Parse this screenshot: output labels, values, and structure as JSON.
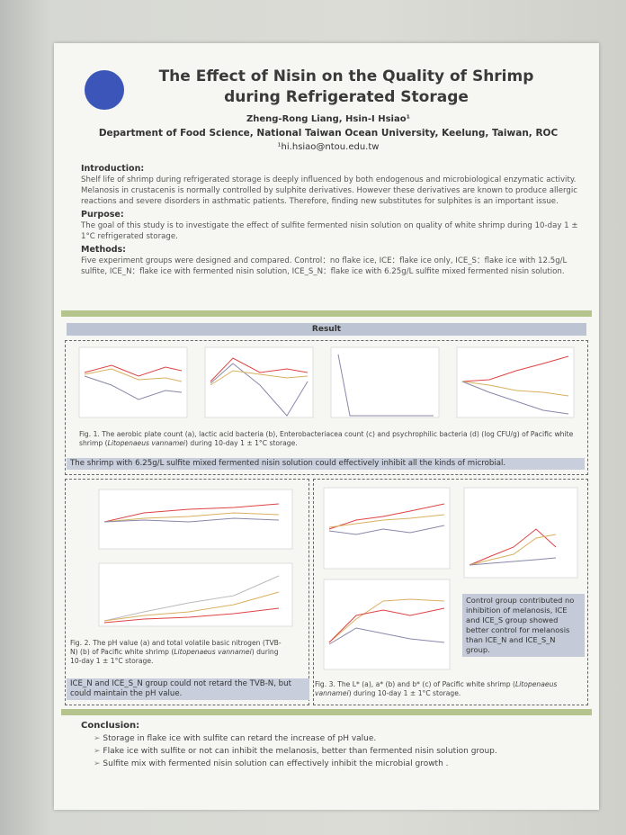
{
  "header": {
    "title": "The Effect of Nisin on the Quality of Shrimp during Refrigerated Storage",
    "authors": "Zheng-Rong Liang, Hsin-I Hsiao¹",
    "affiliation": "Department of Food Science, National Taiwan Ocean University, Keelung, Taiwan, ROC",
    "email": "¹hi.hsiao@ntou.edu.tw"
  },
  "introduction": {
    "heading": "Introduction:",
    "text": "Shelf life of shrimp during refrigerated storage is deeply influenced by both endogenous and microbiological enzymatic activity. Melanosis in crustacenis is normally controlled by sulphite derivatives. However these derivatives are known to produce allergic reactions and severe disorders in asthmatic patients. Therefore, finding new substitutes for sulphites is an important issue."
  },
  "purpose": {
    "heading": "Purpose:",
    "text": "The goal of this study is to investigate the effect of sulfite fermented nisin solution on quality of white shrimp during 10-day 1 ± 1°C refrigerated storage."
  },
  "methods": {
    "heading": "Methods:",
    "text": "Five experiment groups were designed and compared. Control：no flake ice, ICE：flake ice only, ICE_S：flake ice with 12.5g/L sulfite, ICE_N：flake ice with fermented nisin solution, ICE_S_N：flake ice with 6.25g/L sulfite mixed fermented nisin solution."
  },
  "result": {
    "heading": "Result",
    "fig1": {
      "caption": [
        "Fig. 1. The aerobic plate count (a), lactic acid bacteria (b), Enterobacteriacea count (c) and psychrophilic bacteria (d) (log CFU/g) of Pacific white shrimp (",
        "Litopenaeus vannamei",
        ") during 10-day 1 ± 1°C storage."
      ],
      "note": "The shrimp with 6.25g/L sulfite mixed fermented nisin solution could effectively inhibit all the kinds of microbial."
    },
    "fig2": {
      "caption": [
        "Fig. 2. The pH value (a) and total volatile basic nitrogen (TVB-N) (b) of Pacific white shrimp (",
        "Litopenaeus vannamei",
        ") during 10-day 1 ± 1°C storage."
      ],
      "note": "ICE_N and ICE_S_N group could not retard the TVB-N, but could maintain the pH value."
    },
    "fig3": {
      "caption": [
        "Fig. 3. The L* (a), a* (b) and b* (c) of Pacific white shrimp (",
        "Litopenaeus vannamei",
        ") during 10-day 1 ± 1°C storage."
      ],
      "note": "Control group contributed no inhibition of melanosis, ICE and ICE_S group showed better control for melanosis than ICE_N and ICE_S_N group."
    }
  },
  "conclusion": {
    "heading": "Conclusion:",
    "items": [
      "Storage in flake ice with sulfite can retard the increase of pH value.",
      "Flake ice with sulfite or not can inhibit the melanosis, better than fermented nisin solution group.",
      "Sulfite mix with fermented nisin solution can effectively inhibit  the microbial growth ."
    ]
  }
}
